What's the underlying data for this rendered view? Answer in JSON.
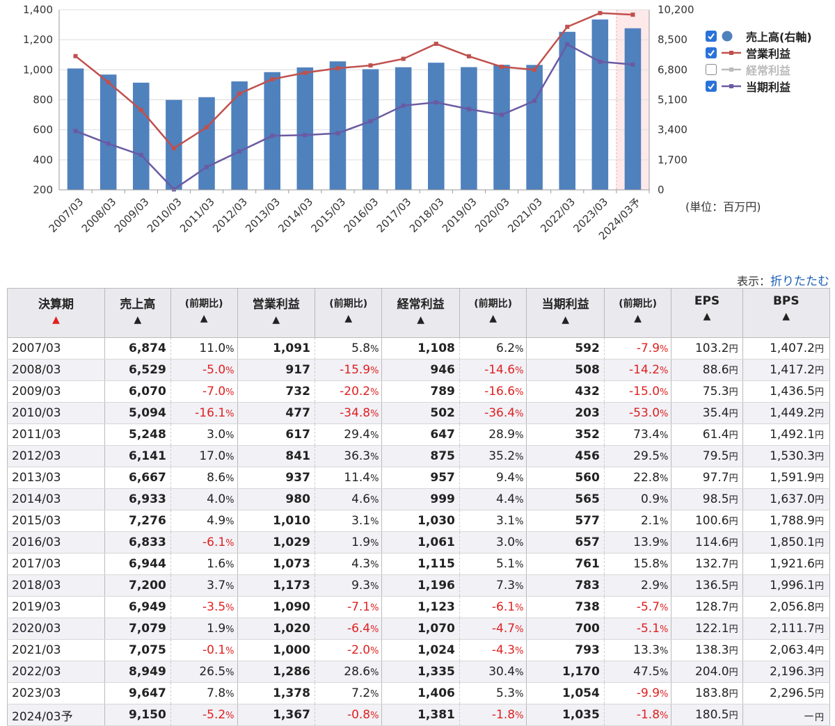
{
  "chart_data": {
    "type": "bar+line",
    "categories": [
      "2007/03",
      "2008/03",
      "2009/03",
      "2010/03",
      "2011/03",
      "2012/03",
      "2013/03",
      "2014/03",
      "2015/03",
      "2016/03",
      "2017/03",
      "2018/03",
      "2019/03",
      "2020/03",
      "2021/03",
      "2022/03",
      "2023/03",
      "2024/03予"
    ],
    "y_left": {
      "min": 200,
      "max": 1400,
      "ticks": [
        200,
        400,
        600,
        800,
        "1,000",
        "1,200",
        "1,400"
      ]
    },
    "y_right": {
      "min": 0,
      "max": 10200,
      "ticks": [
        "0",
        "1,700",
        "3,400",
        "5,100",
        "6,800",
        "8,500",
        "10,200"
      ]
    },
    "forecast_index": 17,
    "series": [
      {
        "name": "売上高(右軸)",
        "type": "bar",
        "axis": "right",
        "color": "#4f81bd",
        "enabled": true,
        "values": [
          6874,
          6529,
          6070,
          5094,
          5248,
          6141,
          6667,
          6933,
          7276,
          6833,
          6944,
          7200,
          6949,
          7079,
          7075,
          8949,
          9647,
          9150
        ]
      },
      {
        "name": "営業利益",
        "type": "line",
        "axis": "left",
        "color": "#c0504d",
        "enabled": true,
        "values": [
          1091,
          917,
          732,
          477,
          617,
          841,
          937,
          980,
          1010,
          1029,
          1073,
          1173,
          1090,
          1020,
          1000,
          1286,
          1378,
          1367
        ]
      },
      {
        "name": "経常利益",
        "type": "line",
        "axis": "left",
        "color": "#bbbbbb",
        "enabled": false,
        "values": [
          1108,
          946,
          789,
          502,
          647,
          875,
          957,
          999,
          1030,
          1061,
          1115,
          1196,
          1123,
          1070,
          1024,
          1335,
          1406,
          1381
        ]
      },
      {
        "name": "当期利益",
        "type": "line",
        "axis": "left",
        "color": "#6a5aa3",
        "enabled": true,
        "values": [
          592,
          508,
          432,
          203,
          352,
          456,
          560,
          565,
          577,
          657,
          761,
          783,
          738,
          700,
          793,
          1170,
          1054,
          1035
        ]
      }
    ],
    "unit_note": "(単位：百万円)"
  },
  "toggle": {
    "label": "表示：",
    "link": "折りたたむ"
  },
  "table": {
    "headers": [
      "決算期",
      "売上高",
      "(前期比)",
      "営業利益",
      "(前期比)",
      "経常利益",
      "(前期比)",
      "当期利益",
      "(前期比)",
      "EPS",
      "BPS"
    ],
    "arrow": "▲",
    "rows": [
      [
        "2007/03",
        "6,874",
        "11.0",
        "1,091",
        "5.8",
        "1,108",
        "6.2",
        "592",
        "-7.9",
        "103.2",
        "1,407.2"
      ],
      [
        "2008/03",
        "6,529",
        "-5.0",
        "917",
        "-15.9",
        "946",
        "-14.6",
        "508",
        "-14.2",
        "88.6",
        "1,417.2"
      ],
      [
        "2009/03",
        "6,070",
        "-7.0",
        "732",
        "-20.2",
        "789",
        "-16.6",
        "432",
        "-15.0",
        "75.3",
        "1,436.5"
      ],
      [
        "2010/03",
        "5,094",
        "-16.1",
        "477",
        "-34.8",
        "502",
        "-36.4",
        "203",
        "-53.0",
        "35.4",
        "1,449.2"
      ],
      [
        "2011/03",
        "5,248",
        "3.0",
        "617",
        "29.4",
        "647",
        "28.9",
        "352",
        "73.4",
        "61.4",
        "1,492.1"
      ],
      [
        "2012/03",
        "6,141",
        "17.0",
        "841",
        "36.3",
        "875",
        "35.2",
        "456",
        "29.5",
        "79.5",
        "1,530.3"
      ],
      [
        "2013/03",
        "6,667",
        "8.6",
        "937",
        "11.4",
        "957",
        "9.4",
        "560",
        "22.8",
        "97.7",
        "1,591.9"
      ],
      [
        "2014/03",
        "6,933",
        "4.0",
        "980",
        "4.6",
        "999",
        "4.4",
        "565",
        "0.9",
        "98.5",
        "1,637.0"
      ],
      [
        "2015/03",
        "7,276",
        "4.9",
        "1,010",
        "3.1",
        "1,030",
        "3.1",
        "577",
        "2.1",
        "100.6",
        "1,788.9"
      ],
      [
        "2016/03",
        "6,833",
        "-6.1",
        "1,029",
        "1.9",
        "1,061",
        "3.0",
        "657",
        "13.9",
        "114.6",
        "1,850.1"
      ],
      [
        "2017/03",
        "6,944",
        "1.6",
        "1,073",
        "4.3",
        "1,115",
        "5.1",
        "761",
        "15.8",
        "132.7",
        "1,921.6"
      ],
      [
        "2018/03",
        "7,200",
        "3.7",
        "1,173",
        "9.3",
        "1,196",
        "7.3",
        "783",
        "2.9",
        "136.5",
        "1,996.1"
      ],
      [
        "2019/03",
        "6,949",
        "-3.5",
        "1,090",
        "-7.1",
        "1,123",
        "-6.1",
        "738",
        "-5.7",
        "128.7",
        "2,056.8"
      ],
      [
        "2020/03",
        "7,079",
        "1.9",
        "1,020",
        "-6.4",
        "1,070",
        "-4.7",
        "700",
        "-5.1",
        "122.1",
        "2,111.7"
      ],
      [
        "2021/03",
        "7,075",
        "-0.1",
        "1,000",
        "-2.0",
        "1,024",
        "-4.3",
        "793",
        "13.3",
        "138.3",
        "2,063.4"
      ],
      [
        "2022/03",
        "8,949",
        "26.5",
        "1,286",
        "28.6",
        "1,335",
        "30.4",
        "1,170",
        "47.5",
        "204.0",
        "2,196.3"
      ],
      [
        "2023/03",
        "9,647",
        "7.8",
        "1,378",
        "7.2",
        "1,406",
        "5.3",
        "1,054",
        "-9.9",
        "183.8",
        "2,296.5"
      ],
      [
        "2024/03予",
        "9,150",
        "-5.2",
        "1,367",
        "-0.8",
        "1,381",
        "-1.8",
        "1,035",
        "-1.8",
        "180.5",
        "－"
      ]
    ],
    "pct_suffix": "%",
    "yen_suffix": "円"
  }
}
